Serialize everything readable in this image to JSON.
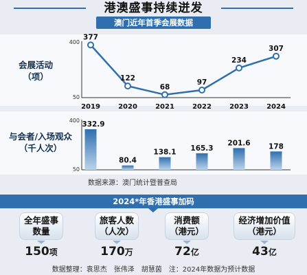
{
  "header": {
    "title": "港澳盛事持续迸发",
    "subtitle": "澳门近年首季会展数据"
  },
  "chart_data": [
    {
      "type": "line",
      "label_line1": "会展活动",
      "label_line2": "（项）",
      "categories": [
        "2019",
        "2020",
        "2021",
        "2022",
        "2023",
        "2024"
      ],
      "values": [
        377,
        122,
        68,
        97,
        234,
        307
      ],
      "ylim": [
        50,
        400
      ],
      "yticks": [
        "400",
        "50"
      ],
      "color": "#2f6fae"
    },
    {
      "type": "bar",
      "label_line1": "与会者/入场观众",
      "label_line2": "（千人次）",
      "categories": [
        "2019",
        "2020",
        "2021",
        "2022",
        "2023",
        "2024"
      ],
      "values": [
        332.9,
        80.4,
        138.1,
        165.3,
        201.6,
        178
      ],
      "value_labels": [
        "332.9",
        "80.4",
        "138.1",
        "165.3",
        "201.6",
        "178"
      ],
      "ylim": [
        50,
        400
      ],
      "yticks": [
        "400",
        "50"
      ],
      "color": "#2f6fae"
    }
  ],
  "source": "数据来源：澳门统计暨普查局",
  "stats": {
    "heading": "2024*年香港盛事加码",
    "items": [
      {
        "label_line1": "全年盛事",
        "label_line2": "数量",
        "value": "150",
        "unit": "项"
      },
      {
        "label_line1": "旅客人数",
        "label_line2": "（人次）",
        "value": "170",
        "unit": "万"
      },
      {
        "label_line1": "消费额",
        "label_line2": "（港元）",
        "value": "72",
        "unit": "亿"
      },
      {
        "label_line1": "经济增加价值",
        "label_line2": "（港元）",
        "value": "43",
        "unit": "亿"
      }
    ]
  },
  "footer": "数据整理：袁思杰　张伟泽　胡慧茵　注：2024年数据为预计数据"
}
